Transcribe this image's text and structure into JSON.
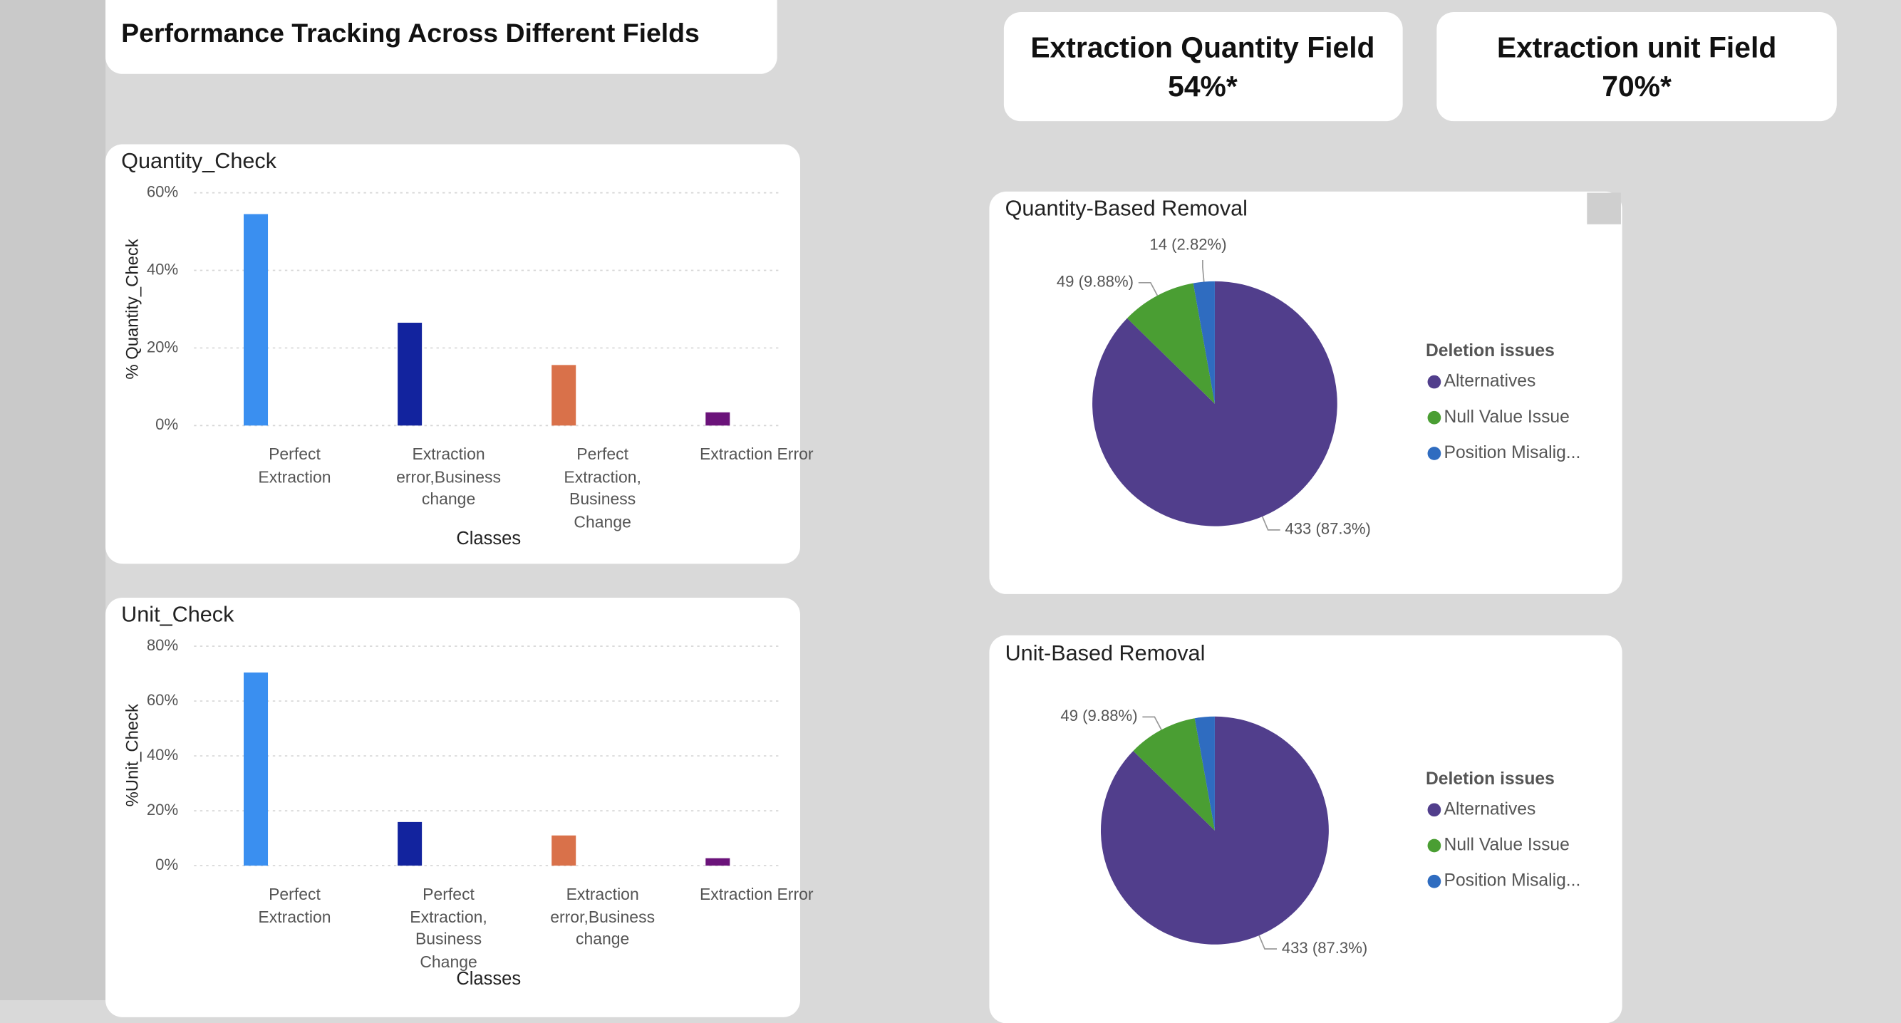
{
  "title": "Performance Tracking Across Different Fields",
  "kpis": [
    {
      "label": "Extraction Quantity Field",
      "value": "54%*"
    },
    {
      "label": "Extraction unit Field",
      "value": "70%*"
    }
  ],
  "chart_data": [
    {
      "type": "bar",
      "title": "Quantity_Check",
      "x_label": "Classes",
      "y_label": "% Quantity_Check",
      "categories": [
        "Perfect Extraction",
        "Extraction error,Business change",
        "Perfect Extraction, Business Change",
        "Extraction Error"
      ],
      "values": [
        54.5,
        26.5,
        15.6,
        3.4
      ],
      "colors": [
        "#3a8ff0",
        "#12239e",
        "#d9714a",
        "#6b137a"
      ],
      "ylim": [
        0,
        60
      ],
      "yticks": [
        {
          "value": 0,
          "label": "0%"
        },
        {
          "value": 20,
          "label": "20%"
        },
        {
          "value": 40,
          "label": "40%"
        },
        {
          "value": 60,
          "label": "60%"
        }
      ],
      "grid": true
    },
    {
      "type": "bar",
      "title": "Unit_Check",
      "x_label": "Classes",
      "y_label": "%Unit_Check",
      "categories": [
        "Perfect Extraction",
        "Perfect Extraction, Business Change",
        "Extraction error,Business change",
        "Extraction Error"
      ],
      "values": [
        70.4,
        15.9,
        11.0,
        2.7
      ],
      "colors": [
        "#3a8ff0",
        "#12239e",
        "#d9714a",
        "#6b137a"
      ],
      "ylim": [
        0,
        80
      ],
      "yticks": [
        {
          "value": 0,
          "label": "0%"
        },
        {
          "value": 20,
          "label": "20%"
        },
        {
          "value": 40,
          "label": "40%"
        },
        {
          "value": 60,
          "label": "60%"
        },
        {
          "value": 80,
          "label": "80%"
        }
      ],
      "grid": true
    },
    {
      "type": "pie",
      "title": "Quantity-Based Removal",
      "legend_title": "Deletion issues",
      "categories": [
        "Alternatives",
        "Null Value Issue",
        "Position Misalig..."
      ],
      "values": [
        433,
        49,
        14
      ],
      "value_labels": [
        "433 (87.3%)",
        "49 (9.88%)",
        "14 (2.82%)"
      ],
      "colors": [
        "#513e8c",
        "#4a9e33",
        "#2f6cc0"
      ],
      "legend": "right"
    },
    {
      "type": "pie",
      "title": "Unit-Based Removal",
      "legend_title": "Deletion issues",
      "categories": [
        "Alternatives",
        "Null Value Issue",
        "Position Misalig..."
      ],
      "values": [
        433,
        49,
        14
      ],
      "value_labels": [
        "433 (87.3%)",
        "49 (9.88%)",
        null
      ],
      "colors": [
        "#513e8c",
        "#4a9e33",
        "#2f6cc0"
      ],
      "legend": "right"
    }
  ]
}
